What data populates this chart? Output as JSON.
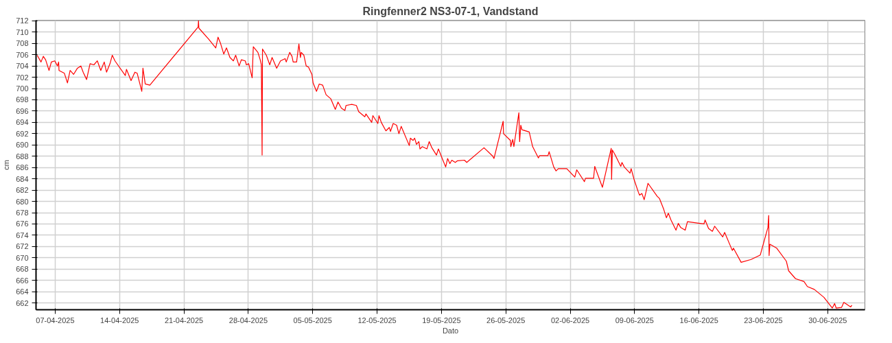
{
  "chart_data": {
    "type": "line",
    "title": "Ringfenner2 NS3-07-1, Vandstand",
    "xlabel": "Dato",
    "ylabel": "cm",
    "xlim": [
      "2025-04-04T22:00",
      "2025-07-04T01:00"
    ],
    "xticks": [
      {
        "value": "2025-04-07",
        "label": "07-04-2025"
      },
      {
        "value": "2025-04-14",
        "label": "14-04-2025"
      },
      {
        "value": "2025-04-21",
        "label": "21-04-2025"
      },
      {
        "value": "2025-04-28",
        "label": "28-04-2025"
      },
      {
        "value": "2025-05-05",
        "label": "05-05-2025"
      },
      {
        "value": "2025-05-12",
        "label": "12-05-2025"
      },
      {
        "value": "2025-05-19",
        "label": "19-05-2025"
      },
      {
        "value": "2025-05-26",
        "label": "26-05-2025"
      },
      {
        "value": "2025-06-02",
        "label": "02-06-2025"
      },
      {
        "value": "2025-06-09",
        "label": "09-06-2025"
      },
      {
        "value": "2025-06-16",
        "label": "16-06-2025"
      },
      {
        "value": "2025-06-23",
        "label": "23-06-2025"
      },
      {
        "value": "2025-06-30",
        "label": "30-06-2025"
      }
    ],
    "ylim": [
      660.8,
      712.1
    ],
    "yticks": [
      662,
      664,
      666,
      668,
      670,
      672,
      674,
      676,
      678,
      680,
      682,
      684,
      686,
      688,
      690,
      692,
      694,
      696,
      698,
      700,
      702,
      704,
      706,
      708,
      710,
      712
    ],
    "grid": true,
    "marker": "none",
    "line_style": "solid",
    "series": [
      {
        "color": "#ff0000",
        "x": [
          "2025-04-05T01:00",
          "2025-04-05T11:00",
          "2025-04-05T17:00",
          "2025-04-05T23:00",
          "2025-04-06T08:00",
          "2025-04-06T14:00",
          "2025-04-06T23:00",
          "2025-04-07T06:00",
          "2025-04-07T09:00",
          "2025-04-07T10:00",
          "2025-04-08T00:00",
          "2025-04-08T08:00",
          "2025-04-08T15:00",
          "2025-04-09T00:00",
          "2025-04-09T10:00",
          "2025-04-09T19:00",
          "2025-04-10T01:00",
          "2025-04-10T10:00",
          "2025-04-10T19:00",
          "2025-04-11T05:00",
          "2025-04-11T14:00",
          "2025-04-11T23:00",
          "2025-04-12T08:00",
          "2025-04-12T14:00",
          "2025-04-12T23:00",
          "2025-04-13T05:00",
          "2025-04-13T12:00",
          "2025-04-14T15:00",
          "2025-04-14T18:00",
          "2025-04-15T06:00",
          "2025-04-15T16:00",
          "2025-04-15T22:00",
          "2025-04-16T10:00",
          "2025-04-16T13:00",
          "2025-04-16T19:00",
          "2025-04-17T07:00",
          "2025-04-22T13:00",
          "2025-04-22T14:00",
          "2025-04-22T15:00",
          "2025-04-23T17:00",
          "2025-04-24T11:00",
          "2025-04-24T17:00",
          "2025-04-24T23:00",
          "2025-04-25T08:00",
          "2025-04-25T15:00",
          "2025-04-26T00:00",
          "2025-04-26T09:00",
          "2025-04-26T15:00",
          "2025-04-27T00:00",
          "2025-04-27T06:00",
          "2025-04-27T16:00",
          "2025-04-27T19:00",
          "2025-04-28T01:00",
          "2025-04-28T10:00",
          "2025-04-28T13:00",
          "2025-04-29T01:00",
          "2025-04-29T07:00",
          "2025-04-29T10:00",
          "2025-04-29T12:00",
          "2025-04-29T13:00",
          "2025-04-29T23:00",
          "2025-04-30T08:00",
          "2025-04-30T14:00",
          "2025-05-01T02:00",
          "2025-05-01T12:00",
          "2025-05-02T00:00",
          "2025-05-02T03:00",
          "2025-05-02T12:00",
          "2025-05-02T18:00",
          "2025-05-02T21:00",
          "2025-05-03T06:00",
          "2025-05-03T12:00",
          "2025-05-03T16:00",
          "2025-05-03T18:00",
          "2025-05-04T01:00",
          "2025-05-04T07:00",
          "2025-05-04T13:00",
          "2025-05-04T22:00",
          "2025-05-05T01:00",
          "2025-05-05T10:00",
          "2025-05-05T17:00",
          "2025-05-06T02:00",
          "2025-05-06T11:00",
          "2025-05-06T23:00",
          "2025-05-07T11:00",
          "2025-05-07T18:00",
          "2025-05-08T03:00",
          "2025-05-08T12:00",
          "2025-05-08T15:00",
          "2025-05-09T06:00",
          "2025-05-09T18:00",
          "2025-05-10T00:00",
          "2025-05-10T16:00",
          "2025-05-10T19:00",
          "2025-05-11T10:00",
          "2025-05-11T13:00",
          "2025-05-12T02:00",
          "2025-05-12T05:00",
          "2025-05-12T11:00",
          "2025-05-12T23:00",
          "2025-05-13T08:00",
          "2025-05-13T11:00",
          "2025-05-13T18:00",
          "2025-05-14T03:00",
          "2025-05-14T09:00",
          "2025-05-14T15:00",
          "2025-05-15T12:00",
          "2025-05-15T15:00",
          "2025-05-15T22:00",
          "2025-05-16T02:00",
          "2025-05-16T07:00",
          "2025-05-16T13:00",
          "2025-05-16T16:00",
          "2025-05-16T22:00",
          "2025-05-17T10:00",
          "2025-05-17T16:00",
          "2025-05-17T23:00",
          "2025-05-18T11:00",
          "2025-05-18T16:00",
          "2025-05-19T02:00",
          "2025-05-19T11:00",
          "2025-05-19T16:00",
          "2025-05-19T22:00",
          "2025-05-20T03:00",
          "2025-05-20T12:00",
          "2025-05-20T18:00",
          "2025-05-21T12:00",
          "2025-05-21T18:00",
          "2025-05-23T15:00",
          "2025-05-24T14:00",
          "2025-05-24T17:00",
          "2025-05-25T17:00",
          "2025-05-25T18:00",
          "2025-05-26T12:00",
          "2025-05-26T13:00",
          "2025-05-26T18:00",
          "2025-05-26T21:00",
          "2025-05-27T10:00",
          "2025-05-27T12:00",
          "2025-05-27T15:00",
          "2025-05-27T18:00",
          "2025-05-28T13:00",
          "2025-05-28T22:00",
          "2025-05-29T13:00",
          "2025-05-29T16:00",
          "2025-05-30T14:00",
          "2025-05-30T17:00",
          "2025-05-31T05:00",
          "2025-05-31T11:00",
          "2025-05-31T17:00",
          "2025-06-01T15:00",
          "2025-06-02T12:00",
          "2025-06-02T17:00",
          "2025-06-03T13:00",
          "2025-06-03T16:00",
          "2025-06-04T13:00",
          "2025-06-04T16:00",
          "2025-06-05T12:00",
          "2025-06-06T11:00",
          "2025-06-06T12:00",
          "2025-06-06T14:00",
          "2025-06-06T20:00",
          "2025-06-07T12:00",
          "2025-06-07T15:00",
          "2025-06-07T21:00",
          "2025-06-08T12:00",
          "2025-06-08T15:00",
          "2025-06-08T23:00",
          "2025-06-09T10:00",
          "2025-06-09T13:00",
          "2025-06-09T19:00",
          "2025-06-10T01:00",
          "2025-06-10T11:00",
          "2025-06-11T11:00",
          "2025-06-11T17:00",
          "2025-06-12T04:00",
          "2025-06-12T11:00",
          "2025-06-12T16:00",
          "2025-06-12T23:00",
          "2025-06-13T12:00",
          "2025-06-13T18:00",
          "2025-06-14T00:00",
          "2025-06-14T12:00",
          "2025-06-14T18:00",
          "2025-06-16T13:00",
          "2025-06-16T16:00",
          "2025-06-17T01:00",
          "2025-06-17T11:00",
          "2025-06-17T17:00",
          "2025-06-18T14:00",
          "2025-06-18T19:00",
          "2025-06-19T15:00",
          "2025-06-19T18:00",
          "2025-06-20T14:00",
          "2025-06-21T16:00",
          "2025-06-22T16:00",
          "2025-06-23T12:00",
          "2025-06-23T14:00",
          "2025-06-23T15:00",
          "2025-06-23T17:00",
          "2025-06-24T11:00",
          "2025-06-25T12:00",
          "2025-06-25T18:00",
          "2025-06-26T12:00",
          "2025-06-27T10:00",
          "2025-06-27T19:00",
          "2025-06-28T13:00",
          "2025-06-29T14:00",
          "2025-06-30T12:00",
          "2025-06-30T18:00",
          "2025-06-30T22:00",
          "2025-07-01T12:00",
          "2025-07-01T18:00",
          "2025-07-02T12:00",
          "2025-07-02T15:00"
        ],
        "values": [
          705.9,
          704.7,
          705.7,
          705.1,
          703.2,
          704.7,
          704.9,
          704.0,
          704.7,
          703.2,
          702.7,
          701.0,
          703.2,
          702.5,
          703.6,
          704.0,
          702.9,
          701.6,
          704.4,
          704.2,
          704.9,
          703.2,
          704.7,
          702.9,
          704.4,
          705.9,
          704.9,
          702.3,
          703.4,
          701.4,
          702.9,
          702.7,
          699.5,
          703.6,
          700.8,
          700.6,
          710.9,
          712.0,
          710.7,
          708.7,
          707.2,
          709.1,
          708.1,
          706.1,
          707.2,
          705.5,
          704.9,
          705.9,
          704.0,
          705.1,
          704.9,
          704.2,
          704.4,
          701.9,
          707.4,
          706.4,
          705.1,
          704.2,
          688.2,
          707.0,
          705.9,
          704.2,
          705.5,
          703.6,
          704.9,
          705.3,
          704.7,
          706.4,
          705.7,
          704.7,
          704.7,
          707.9,
          705.5,
          706.4,
          705.9,
          704.0,
          703.8,
          702.5,
          701.0,
          699.5,
          700.8,
          700.6,
          698.9,
          698.2,
          696.3,
          697.6,
          696.5,
          696.1,
          697.0,
          697.2,
          697.0,
          695.9,
          695.0,
          695.5,
          694.0,
          695.2,
          693.8,
          695.2,
          694.0,
          692.5,
          693.1,
          692.4,
          693.8,
          693.5,
          692.0,
          693.3,
          689.9,
          691.2,
          690.8,
          691.2,
          690.1,
          690.6,
          689.3,
          689.7,
          689.3,
          690.6,
          689.5,
          688.2,
          689.3,
          687.6,
          686.1,
          687.6,
          686.7,
          687.3,
          686.9,
          687.2,
          687.3,
          686.9,
          689.5,
          688.0,
          687.6,
          694.2,
          692.0,
          690.8,
          689.7,
          691.0,
          689.7,
          695.7,
          690.6,
          693.5,
          692.7,
          692.3,
          689.7,
          687.7,
          688.1,
          688.1,
          688.8,
          686.1,
          685.4,
          685.8,
          685.8,
          684.3,
          685.6,
          683.5,
          684.1,
          684.1,
          686.2,
          682.5,
          689.4,
          683.9,
          689.1,
          688.4,
          686.2,
          686.9,
          686.1,
          685.0,
          685.8,
          683.8,
          681.6,
          681.1,
          681.4,
          680.3,
          683.2,
          680.9,
          680.5,
          678.6,
          677.1,
          677.9,
          676.7,
          674.9,
          676.1,
          675.4,
          674.9,
          676.4,
          676.0,
          676.7,
          675.2,
          674.7,
          675.6,
          673.7,
          674.5,
          671.3,
          671.7,
          669.2,
          669.7,
          670.5,
          675.4,
          677.5,
          670.4,
          672.4,
          671.7,
          669.4,
          667.7,
          666.3,
          665.8,
          664.9,
          664.4,
          663.0,
          661.1,
          661.9,
          661.1,
          661.2,
          662.1,
          661.3,
          661.6
        ]
      }
    ]
  }
}
